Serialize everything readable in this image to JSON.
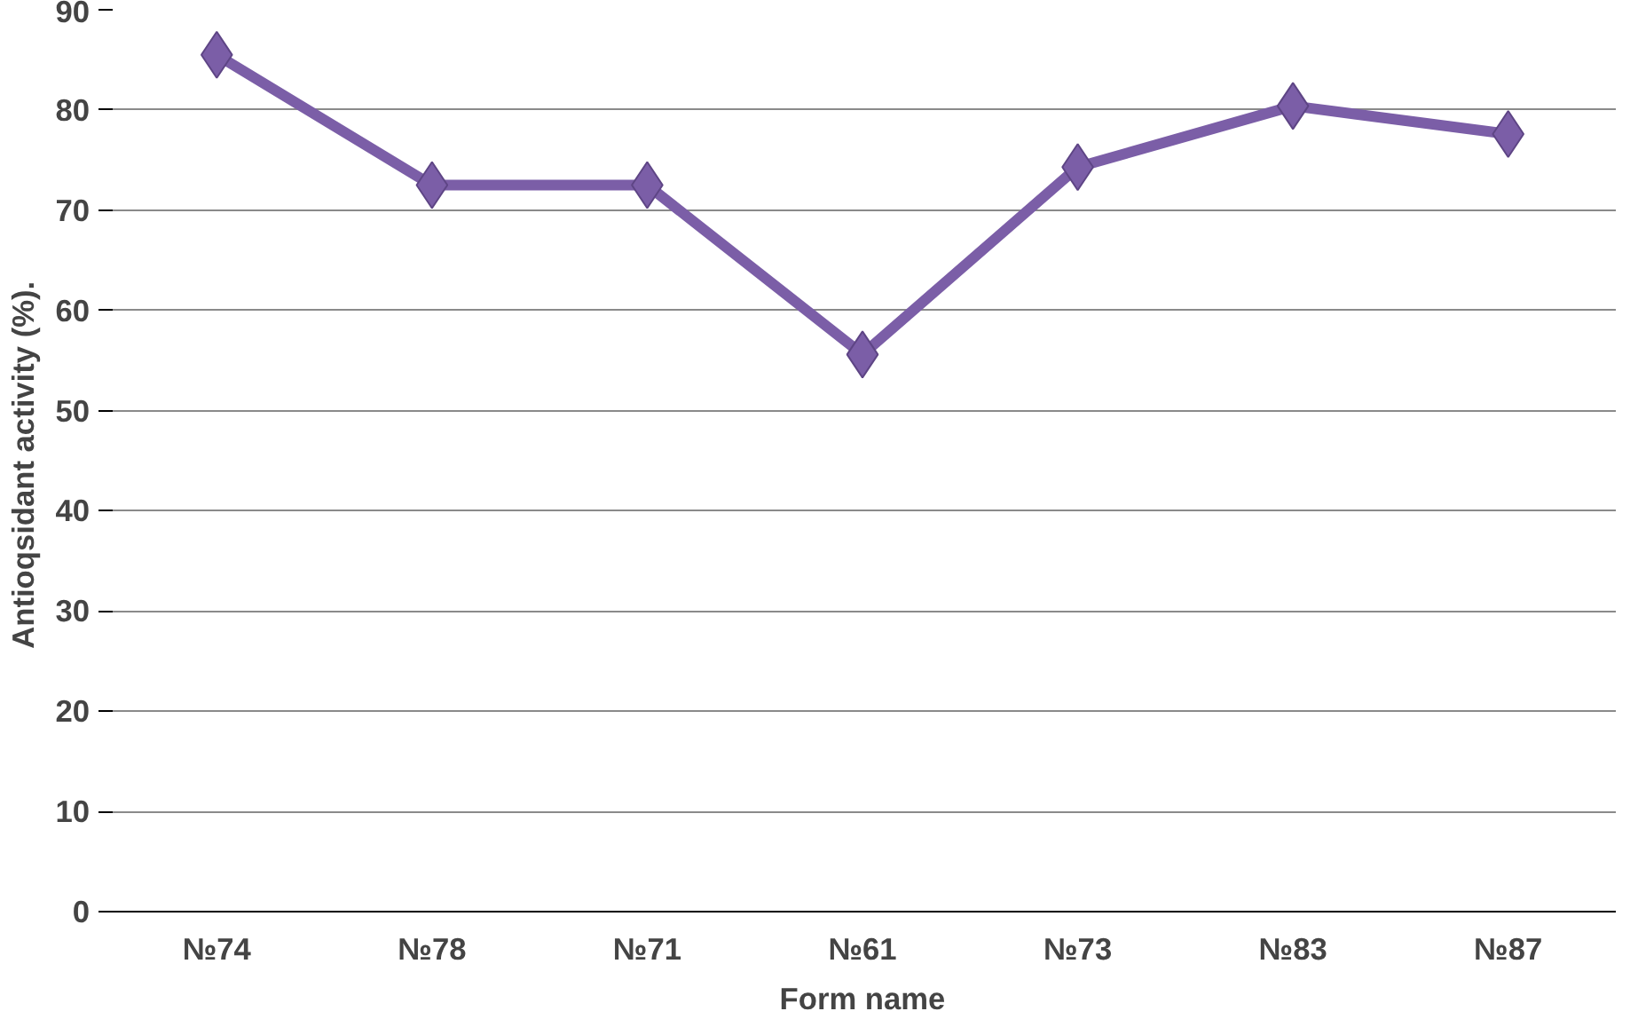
{
  "chart_data": {
    "type": "line",
    "xlabel": "Form name",
    "ylabel": "Antioqsidant activity  (%).",
    "categories": [
      "№74",
      "№78",
      "№71",
      "№61",
      "№73",
      "№83",
      "№87"
    ],
    "series": [
      {
        "color": "#7b5ea7",
        "values": [
          85.5,
          72.5,
          72.5,
          55.6,
          74.3,
          80.4,
          77.6
        ]
      }
    ],
    "ylim": [
      0,
      90
    ],
    "yticks": [
      0,
      10,
      20,
      30,
      40,
      50,
      60,
      70,
      80,
      90
    ],
    "grid": "y",
    "marker": "diamond",
    "line_style": "solid"
  }
}
